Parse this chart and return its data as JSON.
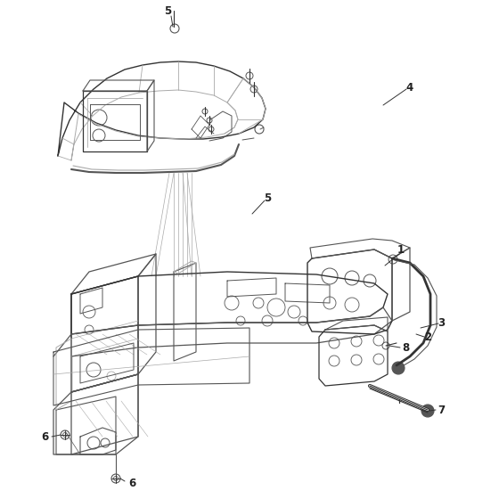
{
  "bg_color": "#ffffff",
  "line_color": "#aaaaaa",
  "dark_color": "#555555",
  "very_dark": "#333333",
  "callout_font_size": 8.5,
  "fig_width": 5.6,
  "fig_height": 5.6,
  "dpi": 100
}
